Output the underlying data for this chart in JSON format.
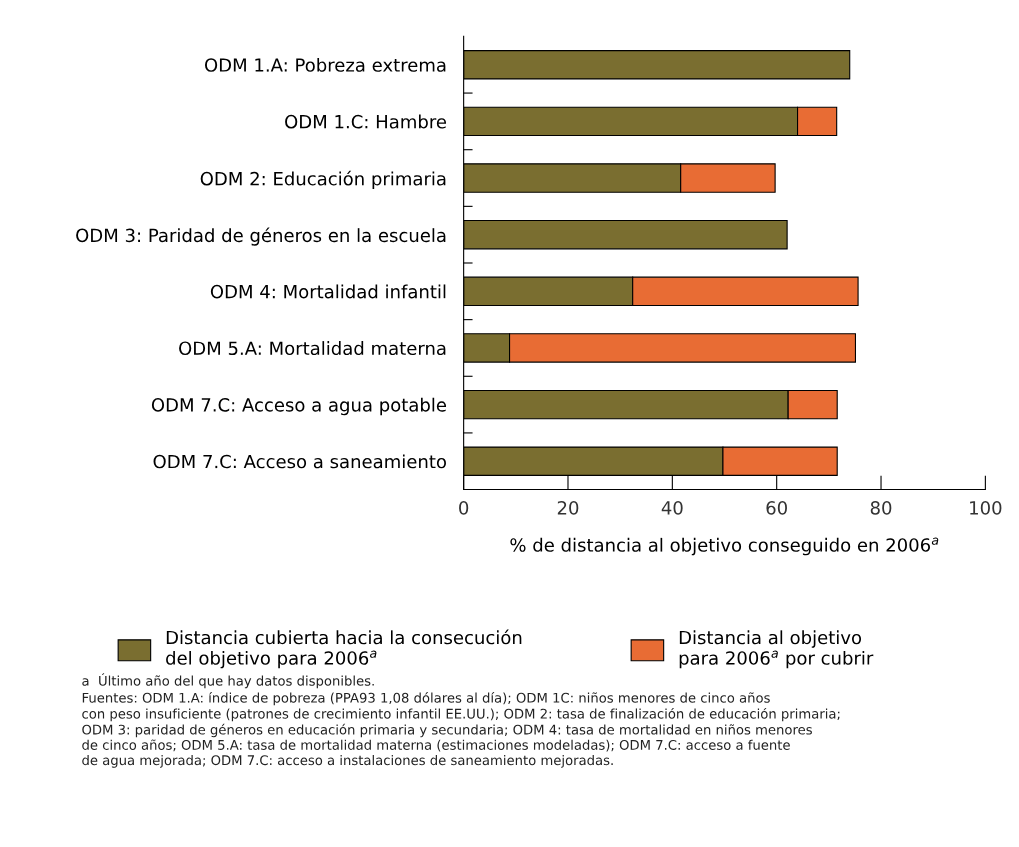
{
  "chart_data": {
    "type": "bar",
    "orientation": "horizontal",
    "stacked": true,
    "categories": [
      "ODM 1.A: Pobreza extrema",
      "ODM 1.C: Hambre",
      "ODM 2: Educación primaria",
      "ODM 3: Paridad de géneros en la escuela",
      "ODM 4: Mortalidad infantil",
      "ODM 5.A: Mortalidad materna",
      "ODM 7.C: Acceso a agua potable",
      "ODM 7.C: Acceso a saneamiento"
    ],
    "series": [
      {
        "name": "Distancia cubierta hacia la consecución\ndel objetivo para 2006$^{a}$",
        "color": "#7a6e30",
        "values": [
          74,
          64,
          41.6,
          62,
          32.4,
          8.8,
          62.2,
          49.7
        ]
      },
      {
        "name": "Distancia al objetivo\npara 2006$^{a}$ por cubrir",
        "color": "#e86c34",
        "values": [
          null,
          7.5,
          18.1,
          null,
          43.2,
          66.3,
          9.4,
          21.9
        ]
      }
    ],
    "xlabel": "% de distancia al objetivo conseguido en 2006$^{a}$",
    "xlim": [
      0,
      100
    ],
    "xticks": [
      0,
      20,
      40,
      60,
      80,
      100
    ],
    "grid": false,
    "legend": "bottom",
    "annotations": [
      "a  Último año del que hay datos disponibles.",
      "Fuentes: ODM 1.A: índice de pobreza (PPA93 1,08 dólares al día); ODM 1C: niños menores de cinco años\ncon peso insuficiente (patrones de crecimiento infantil EE.UU.); ODM 2: tasa de finalización de educación primaria;\nODM 3: paridad de géneros en educación primaria y secundaria; ODM 4: tasa de mortalidad en niños menores\nde cinco años; ODM 5.A: tasa de mortalidad materna (estimaciones modeladas); ODM 7.C: acceso a fuente\nde agua mejorada; ODM 7.C: acceso a instalaciones de saneamiento mejoradas."
    ]
  }
}
